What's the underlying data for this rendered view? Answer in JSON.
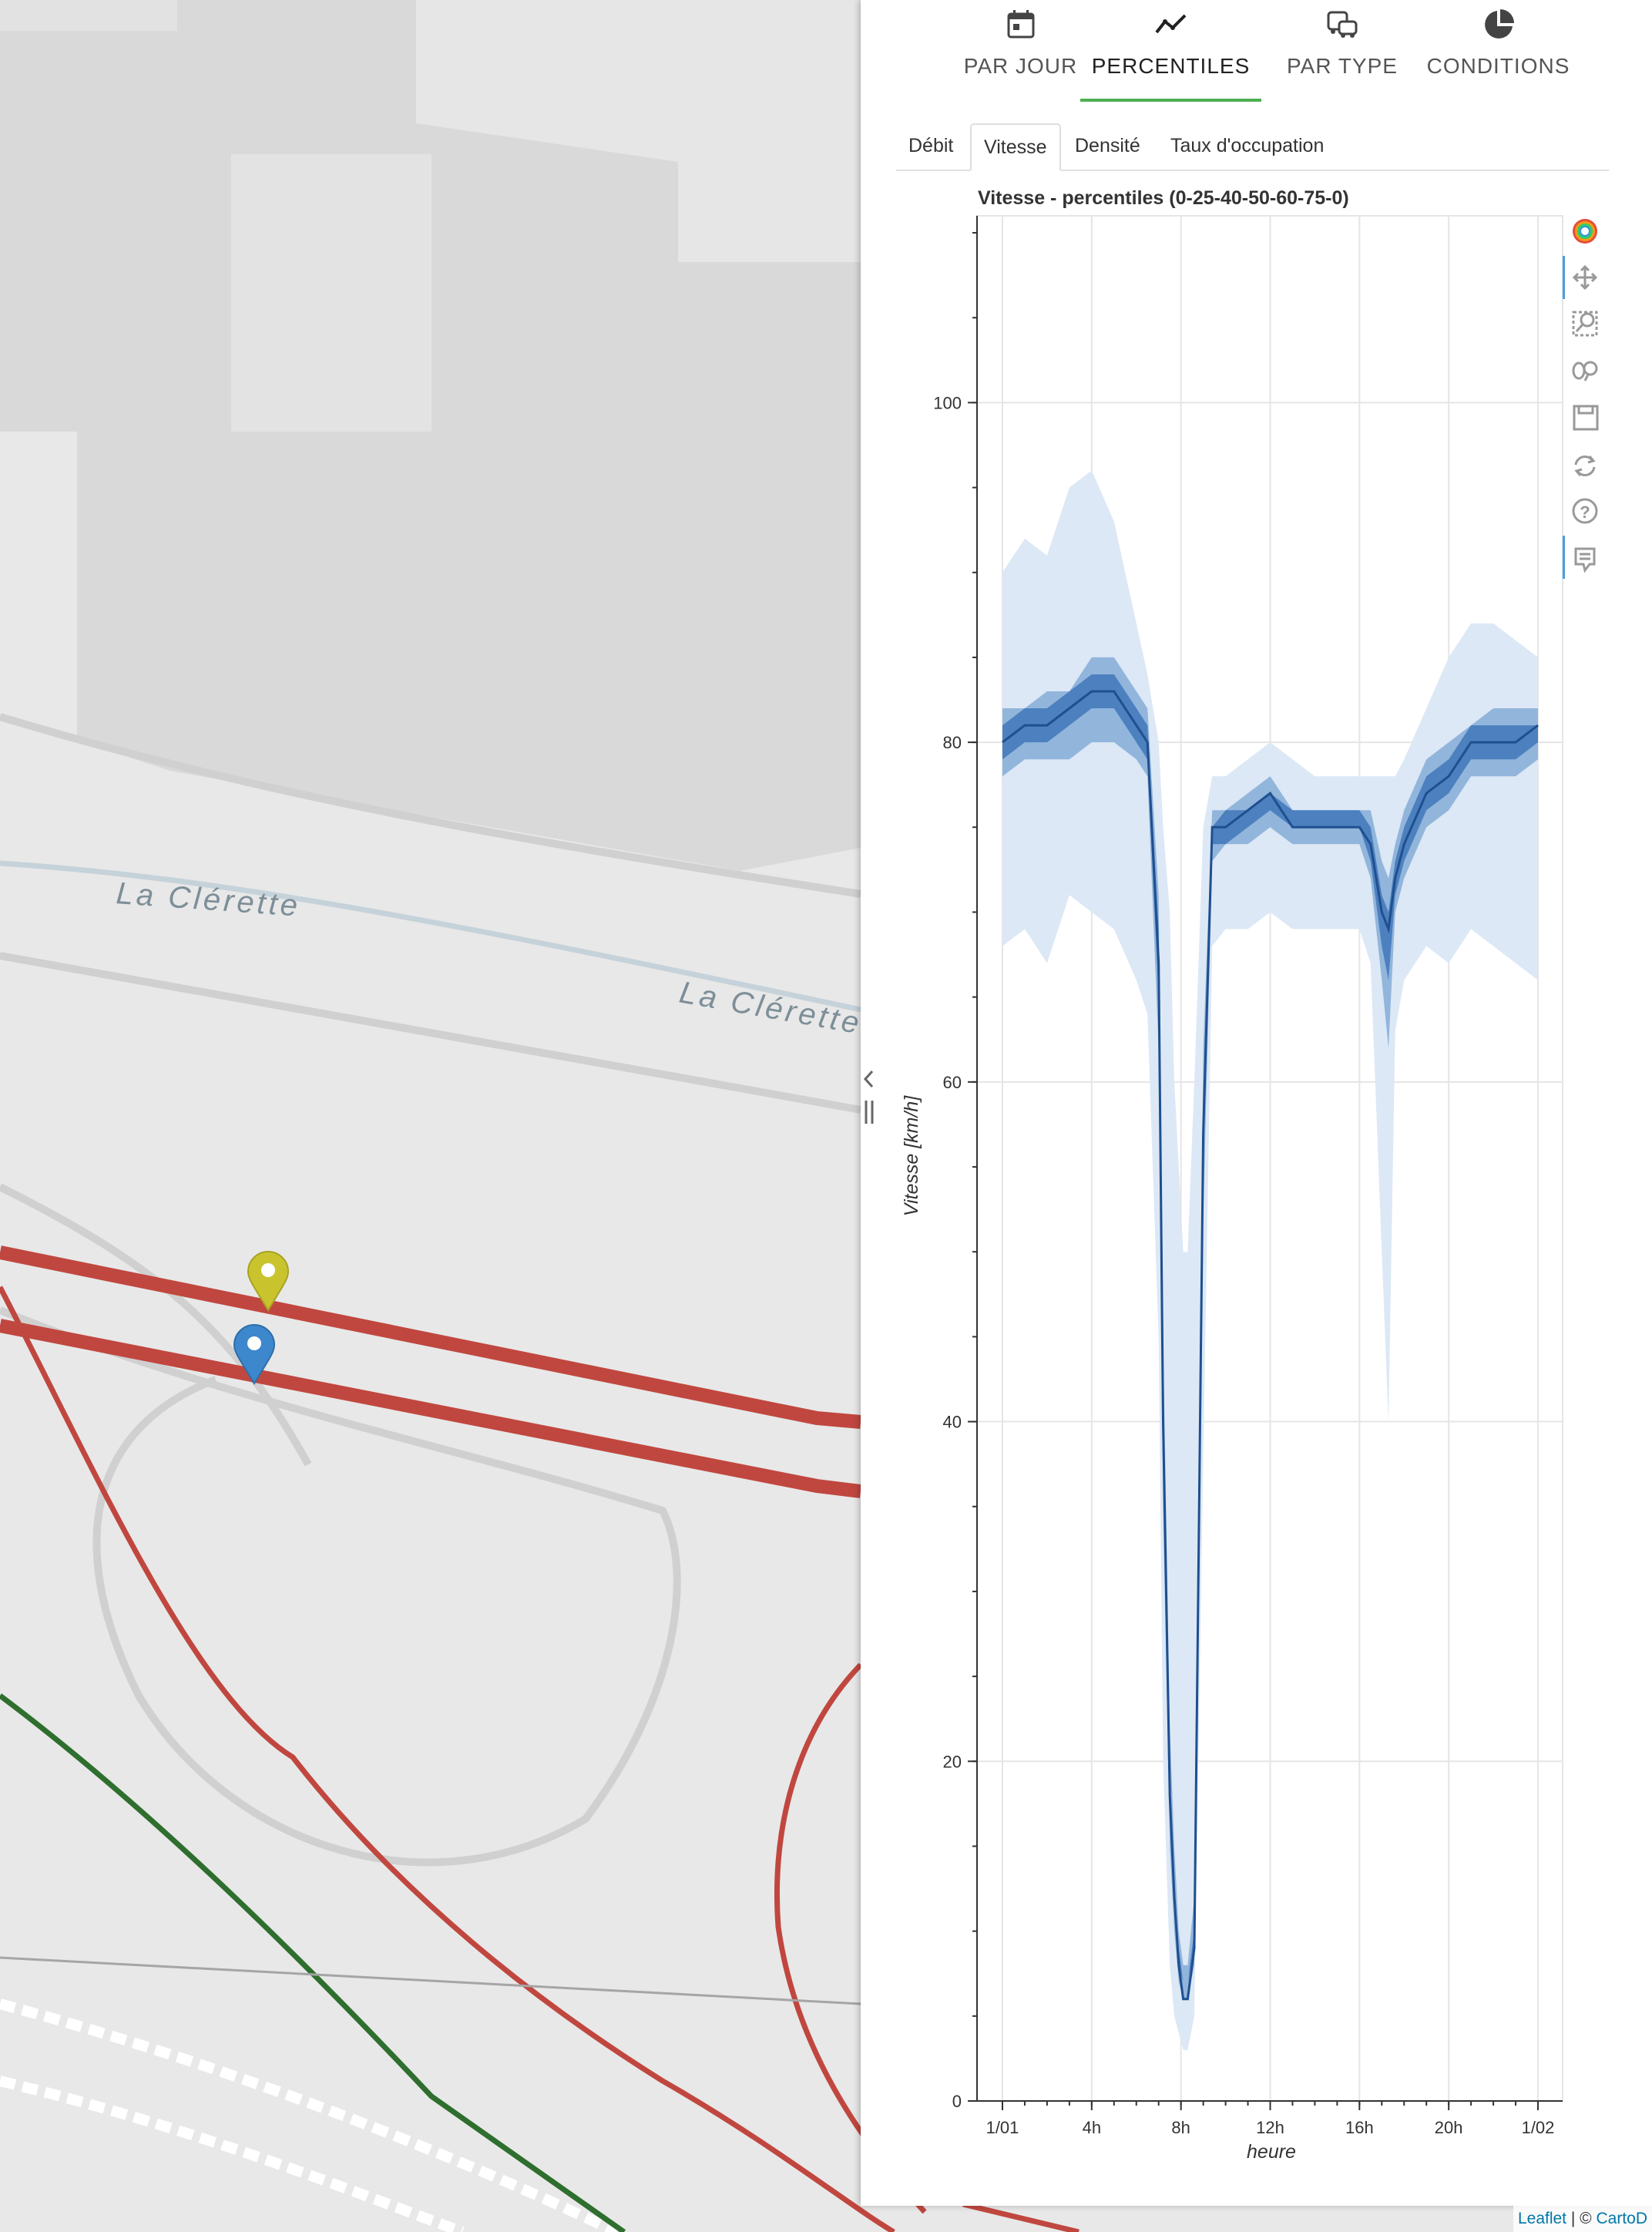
{
  "map": {
    "labels": [
      {
        "text": "La Clérette"
      },
      {
        "text": "La Clérette"
      }
    ],
    "markers": [
      {
        "name": "yellow-marker",
        "color": "#c9c42e"
      },
      {
        "name": "blue-marker",
        "color": "#3d87cc"
      }
    ],
    "road_colors": {
      "red": "#c0473f",
      "green": "#2e6e2e",
      "gray": "#a5a5a5"
    }
  },
  "panel": {
    "main_tabs": [
      {
        "label": "PAR JOUR",
        "icon": "calendar-icon"
      },
      {
        "label": "PERCENTILES",
        "icon": "line-chart-icon",
        "active": true
      },
      {
        "label": "PAR TYPE",
        "icon": "vehicles-icon"
      },
      {
        "label": "CONDITIONS",
        "icon": "pie-chart-icon"
      }
    ],
    "sub_tabs": [
      {
        "label": "Débit"
      },
      {
        "label": "Vitesse",
        "active": true
      },
      {
        "label": "Densité"
      },
      {
        "label": "Taux d'occupation"
      }
    ],
    "accent_color": "#4caf50"
  },
  "chart_data": {
    "type": "area",
    "title": "Vitesse - percentiles (0-25-40-50-60-75-0)",
    "xlabel": "heure",
    "ylabel": "Vitesse [km/h]",
    "x_ticks": [
      "1/01",
      "4h",
      "8h",
      "12h",
      "16h",
      "20h",
      "1/02"
    ],
    "y_ticks": [
      "0",
      "20",
      "40",
      "60",
      "80",
      "100"
    ],
    "ylim": [
      0,
      111
    ],
    "xlim_hours": [
      0,
      24
    ],
    "grid": true,
    "colors": {
      "outer_band": "#dce8f5",
      "inner_band": "#7fa8d6",
      "mid_band": "#3f77b8",
      "median": "#1f4f8f"
    },
    "x_hours": [
      0,
      1,
      2,
      3,
      4,
      5,
      6,
      6.5,
      7,
      7.2,
      7.5,
      7.7,
      7.9,
      8.1,
      8.3,
      8.6,
      9,
      9.4,
      10,
      11,
      12,
      13,
      14,
      15,
      16,
      16.5,
      17,
      17.3,
      17.6,
      18,
      19,
      20,
      21,
      22,
      23,
      24
    ],
    "series": [
      {
        "values": [
          68,
          69,
          67,
          71,
          70,
          69,
          66,
          64,
          45,
          20,
          8,
          5,
          4,
          3,
          3,
          5,
          38,
          68,
          69,
          69,
          70,
          69,
          69,
          69,
          69,
          67,
          50,
          40,
          63,
          66,
          68,
          67,
          69,
          68,
          67,
          66
        ]
      },
      {
        "values": [
          78,
          79,
          79,
          79,
          80,
          80,
          79,
          78,
          62,
          35,
          15,
          10,
          7,
          6,
          6,
          8,
          52,
          73,
          74,
          74,
          75,
          74,
          74,
          74,
          74,
          72,
          66,
          62,
          70,
          72,
          75,
          76,
          78,
          78,
          78,
          79
        ]
      },
      {
        "values": [
          79,
          80,
          80,
          81,
          82,
          82,
          80,
          79,
          65,
          38,
          17,
          12,
          8,
          7,
          7,
          9,
          55,
          74,
          74,
          75,
          76,
          75,
          75,
          75,
          75,
          73,
          68,
          66,
          71,
          73,
          76,
          77,
          79,
          79,
          79,
          80
        ]
      },
      {
        "values": [
          80,
          81,
          81,
          82,
          83,
          83,
          81,
          80,
          67,
          40,
          18,
          12,
          8,
          6,
          6,
          9,
          57,
          75,
          75,
          76,
          77,
          75,
          75,
          75,
          75,
          74,
          70,
          69,
          72,
          74,
          77,
          78,
          80,
          80,
          80,
          81
        ]
      },
      {
        "values": [
          81,
          82,
          82,
          83,
          84,
          84,
          82,
          81,
          69,
          42,
          19,
          13,
          9,
          7,
          7,
          10,
          59,
          75,
          76,
          76,
          77,
          76,
          76,
          76,
          76,
          75,
          71,
          70,
          73,
          75,
          78,
          79,
          81,
          81,
          81,
          81
        ]
      },
      {
        "values": [
          82,
          82,
          83,
          83,
          85,
          85,
          83,
          82,
          71,
          45,
          22,
          15,
          10,
          8,
          8,
          12,
          62,
          76,
          76,
          77,
          78,
          76,
          76,
          76,
          76,
          76,
          73,
          72,
          74,
          76,
          79,
          80,
          81,
          82,
          82,
          82
        ]
      },
      {
        "values": [
          90,
          92,
          91,
          95,
          96,
          93,
          87,
          84,
          80,
          75,
          70,
          60,
          55,
          50,
          50,
          60,
          75,
          78,
          78,
          79,
          80,
          79,
          78,
          78,
          78,
          78,
          78,
          78,
          78,
          79,
          82,
          85,
          87,
          87,
          86,
          85
        ]
      }
    ]
  },
  "attribution": {
    "leaflet": "Leaflet",
    "separator": " | © ",
    "carto": "CartoD"
  }
}
